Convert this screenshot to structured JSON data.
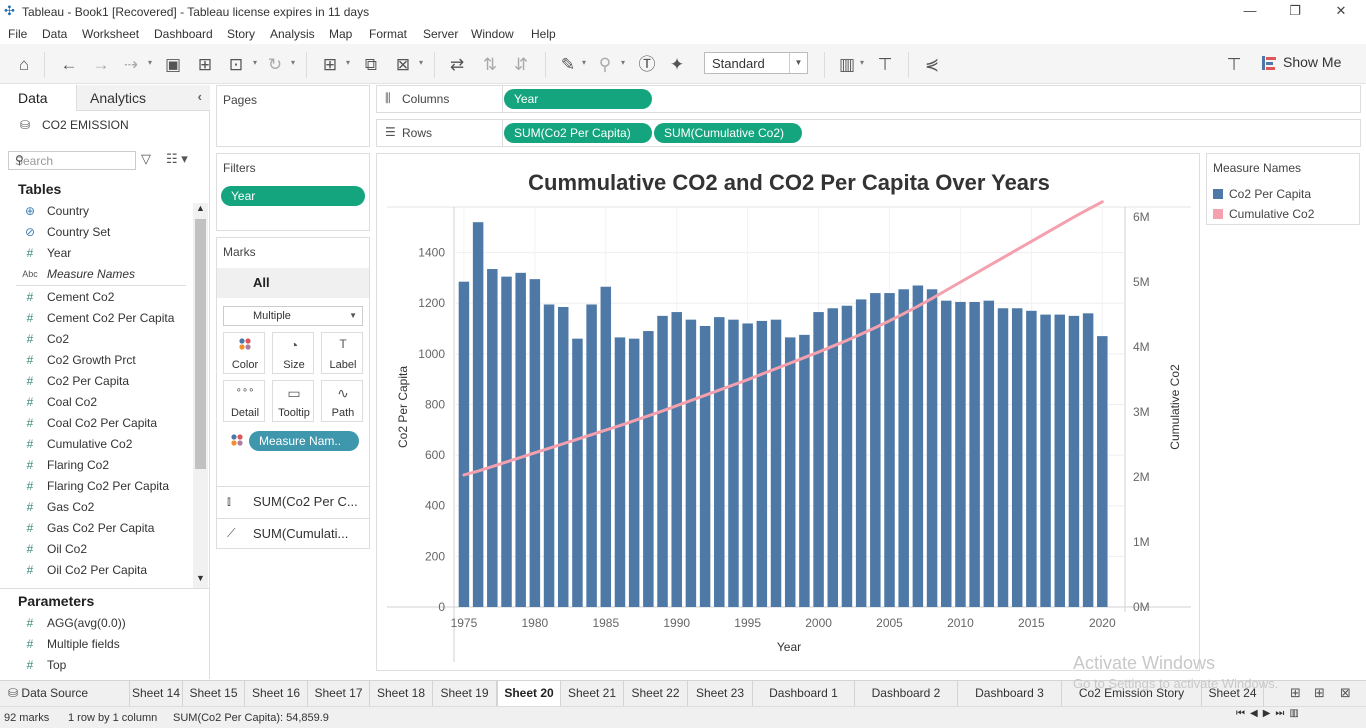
{
  "window": {
    "title": "Tableau - Book1 [Recovered] - Tableau license expires in 11 days",
    "minimize": "—",
    "restore": "❐",
    "close": "✕"
  },
  "menu": [
    "File",
    "Data",
    "Worksheet",
    "Dashboard",
    "Story",
    "Analysis",
    "Map",
    "Format",
    "Server",
    "Window",
    "Help"
  ],
  "toolbar": {
    "fit_select": "Standard",
    "show_me": "Show Me"
  },
  "data_pane": {
    "tab_data": "Data",
    "tab_analytics": "Analytics",
    "datasource": "CO2 EMISSION",
    "search_placeholder": "Search",
    "tables_header": "Tables",
    "fields": [
      {
        "icon": "globe",
        "glyph": "⊕",
        "name": "Country",
        "italic": false
      },
      {
        "icon": "set",
        "glyph": "⊘",
        "name": "Country Set",
        "italic": false
      },
      {
        "icon": "hash",
        "glyph": "#",
        "name": "Year",
        "italic": false
      },
      {
        "icon": "abc",
        "glyph": "Abc",
        "name": "Measure Names",
        "italic": true
      },
      {
        "icon": "hash",
        "glyph": "#",
        "name": "Cement Co2",
        "italic": false
      },
      {
        "icon": "hash",
        "glyph": "#",
        "name": "Cement Co2 Per Capita",
        "italic": false
      },
      {
        "icon": "hash",
        "glyph": "#",
        "name": "Co2",
        "italic": false
      },
      {
        "icon": "hash",
        "glyph": "#",
        "name": "Co2 Growth Prct",
        "italic": false
      },
      {
        "icon": "hash",
        "glyph": "#",
        "name": "Co2 Per Capita",
        "italic": false
      },
      {
        "icon": "hash",
        "glyph": "#",
        "name": "Coal Co2",
        "italic": false
      },
      {
        "icon": "hash",
        "glyph": "#",
        "name": "Coal Co2 Per Capita",
        "italic": false
      },
      {
        "icon": "hash",
        "glyph": "#",
        "name": "Cumulative Co2",
        "italic": false
      },
      {
        "icon": "hash",
        "glyph": "#",
        "name": "Flaring Co2",
        "italic": false
      },
      {
        "icon": "hash",
        "glyph": "#",
        "name": "Flaring Co2 Per Capita",
        "italic": false
      },
      {
        "icon": "hash",
        "glyph": "#",
        "name": "Gas Co2",
        "italic": false
      },
      {
        "icon": "hash",
        "glyph": "#",
        "name": "Gas Co2 Per Capita",
        "italic": false
      },
      {
        "icon": "hash",
        "glyph": "#",
        "name": "Oil Co2",
        "italic": false
      },
      {
        "icon": "hash",
        "glyph": "#",
        "name": "Oil Co2 Per Capita",
        "italic": false
      }
    ],
    "parameters_header": "Parameters",
    "parameters": [
      {
        "glyph": "#",
        "name": "AGG(avg(0.0))"
      },
      {
        "glyph": "#",
        "name": "Multiple fields"
      },
      {
        "glyph": "#",
        "name": "Top"
      }
    ]
  },
  "pages": {
    "title": "Pages"
  },
  "filters": {
    "title": "Filters",
    "pills": [
      "Year"
    ]
  },
  "marks": {
    "title": "Marks",
    "all": "All",
    "type": "Multiple",
    "buttons": [
      {
        "id": "color",
        "label": "Color",
        "glyph": "⁘"
      },
      {
        "id": "size",
        "label": "Size",
        "glyph": "◔"
      },
      {
        "id": "label",
        "label": "Label",
        "glyph": "T"
      },
      {
        "id": "detail",
        "label": "Detail",
        "glyph": "∘∘∘"
      },
      {
        "id": "tooltip",
        "label": "Tooltip",
        "glyph": "▭"
      },
      {
        "id": "path",
        "label": "Path",
        "glyph": "∿"
      }
    ],
    "color_pill": "Measure Nam..",
    "shelves": [
      {
        "glyph": "⫾",
        "label": "SUM(Co2 Per C..."
      },
      {
        "glyph": "⟋",
        "label": "SUM(Cumulati..."
      }
    ]
  },
  "shelves": {
    "columns_label": "Columns",
    "columns_pills": [
      "Year"
    ],
    "rows_label": "Rows",
    "rows_pills": [
      "SUM(Co2 Per Capita)",
      "SUM(Cumulative Co2)"
    ]
  },
  "legend": {
    "title": "Measure Names",
    "items": [
      {
        "name": "Co2 Per Capita",
        "color": "#4e79a7"
      },
      {
        "name": "Cumulative Co2",
        "color": "#f4a0ad"
      }
    ]
  },
  "chart_data": {
    "type": "bar",
    "title": "Cummulative CO2 and CO2 Per Capita Over Years",
    "xlabel": "Year",
    "ylabel": "Co2 Per Capita",
    "y2label": "Cumulative Co2",
    "x": [
      1975,
      1976,
      1977,
      1978,
      1979,
      1980,
      1981,
      1982,
      1983,
      1984,
      1985,
      1986,
      1987,
      1988,
      1989,
      1990,
      1991,
      1992,
      1993,
      1994,
      1995,
      1996,
      1997,
      1998,
      1999,
      2000,
      2001,
      2002,
      2003,
      2004,
      2005,
      2006,
      2007,
      2008,
      2009,
      2010,
      2011,
      2012,
      2013,
      2014,
      2015,
      2016,
      2017,
      2018,
      2019,
      2020
    ],
    "x_ticks": [
      1975,
      1980,
      1985,
      1990,
      1995,
      2000,
      2005,
      2010,
      2015,
      2020
    ],
    "y_ticks": [
      0,
      200,
      400,
      600,
      800,
      1000,
      1200,
      1400
    ],
    "ylim": [
      0,
      1580
    ],
    "y2_ticks": [
      0,
      1000000,
      2000000,
      3000000,
      4000000,
      5000000,
      6000000
    ],
    "y2_tick_labels": [
      "0M",
      "1M",
      "2M",
      "3M",
      "4M",
      "5M",
      "6M"
    ],
    "y2lim": [
      0,
      6150000
    ],
    "series": [
      {
        "name": "Co2 Per Capita",
        "mark": "bar",
        "color": "#4e79a7",
        "values": [
          1285,
          1520,
          1335,
          1305,
          1320,
          1295,
          1195,
          1185,
          1060,
          1195,
          1265,
          1065,
          1060,
          1090,
          1150,
          1165,
          1135,
          1110,
          1145,
          1135,
          1120,
          1130,
          1135,
          1065,
          1075,
          1165,
          1180,
          1190,
          1215,
          1240,
          1240,
          1255,
          1270,
          1255,
          1210,
          1205,
          1205,
          1210,
          1180,
          1180,
          1170,
          1155,
          1155,
          1150,
          1160,
          1070
        ]
      },
      {
        "name": "Cumulative Co2",
        "mark": "line",
        "color": "#f4a0ad",
        "values": [
          2030000,
          2090000,
          2160000,
          2230000,
          2300000,
          2370000,
          2440000,
          2510000,
          2580000,
          2650000,
          2720000,
          2790000,
          2865000,
          2940000,
          3015000,
          3095000,
          3175000,
          3255000,
          3335000,
          3415000,
          3495000,
          3580000,
          3665000,
          3750000,
          3835000,
          3920000,
          4010000,
          4100000,
          4195000,
          4295000,
          4400000,
          4510000,
          4625000,
          4745000,
          4870000,
          4995000,
          5120000,
          5245000,
          5370000,
          5495000,
          5620000,
          5745000,
          5870000,
          5995000,
          6115000,
          6230000
        ]
      }
    ],
    "grid": true,
    "legend": "right"
  },
  "sheet_tabs": {
    "data_source": "Data Source",
    "tabs": [
      "Sheet 14",
      "Sheet 15",
      "Sheet 16",
      "Sheet 17",
      "Sheet 18",
      "Sheet 19",
      "Sheet 20",
      "Sheet 21",
      "Sheet 22",
      "Sheet 23",
      "Dashboard 1",
      "Dashboard 2",
      "Dashboard 3",
      "Co2 Emission Story",
      "Sheet 24"
    ],
    "active": "Sheet 20"
  },
  "status": {
    "marks": "92 marks",
    "dims": "1 row by 1 column",
    "sum": "SUM(Co2 Per Capita): 54,859.9"
  },
  "watermark": {
    "line1": "Activate Windows",
    "line2": "Go to Settings to activate Windows."
  }
}
